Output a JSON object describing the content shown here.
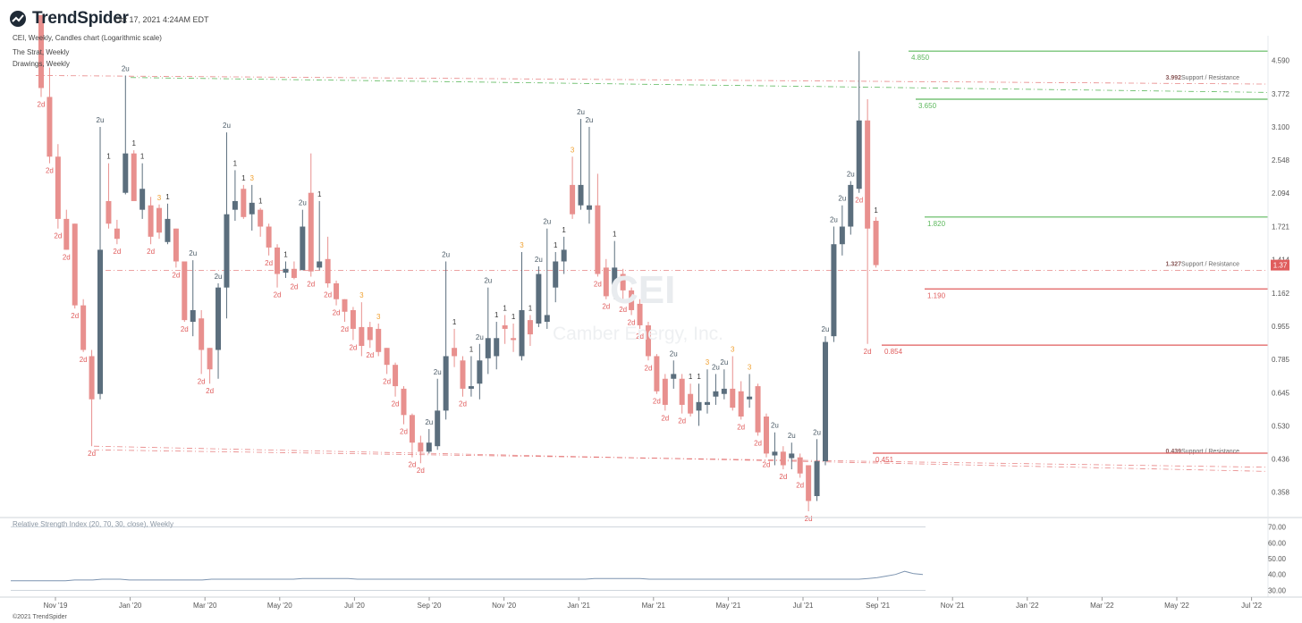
{
  "header": {
    "brand": "TrendSpider",
    "timestamp": "Oct 17, 2021 4:24AM EDT",
    "chart_info": "CEI, Weekly, Candles chart (Logarithmic scale)",
    "study_strat": "The Strat, Weekly",
    "study_drawings": "Drawings, Weekly",
    "rsi_label": "Relative Strength Index (20, 70, 30, close), Weekly",
    "copyright": "©2021 TrendSpider"
  },
  "watermark": {
    "ticker": "CEI",
    "name": "Camber Energy, Inc."
  },
  "colors": {
    "up": "#5b6e7d",
    "down": "#e8908e",
    "green": "#5cb85c",
    "red": "#e05d5d",
    "orange": "#f0a030",
    "grid": "#e3e6ea",
    "rsi": "#7d94b0"
  },
  "icons": {
    "logo": "trendspider-logo-icon"
  },
  "chart_data": {
    "type": "candlestick",
    "scale": "log",
    "ylim": [
      0.31,
      5.2
    ],
    "y_ticks": [
      "4.590",
      "3.772",
      "3.100",
      "2.548",
      "2.094",
      "1.721",
      "1.414",
      "1.162",
      "0.955",
      "0.785",
      "0.645",
      "0.530",
      "0.436",
      "0.358"
    ],
    "last_price": "1.37",
    "x_ticks": [
      "Nov '19",
      "Jan '20",
      "Mar '20",
      "May '20",
      "Jul '20",
      "Sep '20",
      "Nov '20",
      "Jan '21",
      "Mar '21",
      "May '21",
      "Jul '21",
      "Sep '21",
      "Nov '21",
      "Jan '22",
      "Mar '22",
      "May '22",
      "Jul '22"
    ],
    "bars": [
      {
        "d": "dn",
        "o": 6.0,
        "h": 6.0,
        "c": 3.9,
        "l": 3.7,
        "lbl": "2d"
      },
      {
        "d": "dn",
        "o": 3.7,
        "h": 4.4,
        "c": 2.6,
        "l": 2.5,
        "lbl": "2d"
      },
      {
        "d": "dn",
        "o": 2.6,
        "h": 2.8,
        "c": 1.8,
        "l": 1.7,
        "lbl": "2d"
      },
      {
        "d": "dn",
        "o": 1.8,
        "h": 1.9,
        "c": 1.5,
        "l": 1.5,
        "lbl": "2d"
      },
      {
        "d": "dn",
        "o": 1.75,
        "h": 1.75,
        "c": 1.08,
        "l": 1.06,
        "lbl": "2d"
      },
      {
        "d": "dn",
        "o": 1.08,
        "h": 1.12,
        "c": 0.83,
        "l": 0.82,
        "lbl": "2d"
      },
      {
        "d": "dn",
        "o": 0.8,
        "h": 0.83,
        "c": 0.62,
        "l": 0.47,
        "lbl": "2d"
      },
      {
        "d": "up",
        "o": 0.64,
        "h": 3.1,
        "c": 1.5,
        "l": 0.62,
        "lbl": "2u"
      },
      {
        "d": "dn",
        "o": 2.0,
        "h": 2.5,
        "c": 1.75,
        "l": 1.7,
        "lbl": "1"
      },
      {
        "d": "dn",
        "o": 1.7,
        "h": 1.79,
        "c": 1.6,
        "l": 1.55,
        "lbl": "2d"
      },
      {
        "d": "up",
        "o": 2.1,
        "h": 4.2,
        "c": 2.65,
        "l": 2.08,
        "lbl": "2u"
      },
      {
        "d": "dn",
        "o": 2.65,
        "h": 2.7,
        "c": 2.0,
        "l": 2.05,
        "lbl": "1"
      },
      {
        "d": "up",
        "o": 1.9,
        "h": 2.5,
        "c": 2.15,
        "l": 1.8,
        "lbl": "1"
      },
      {
        "d": "dn",
        "o": 1.95,
        "h": 2.05,
        "c": 1.62,
        "l": 1.55,
        "lbl": "2d"
      },
      {
        "d": "dn",
        "o": 1.92,
        "h": 1.96,
        "c": 1.66,
        "l": 1.6,
        "lbl": "3"
      },
      {
        "d": "up",
        "o": 1.57,
        "h": 1.97,
        "c": 1.8,
        "l": 1.55,
        "lbl": "1"
      },
      {
        "d": "dn",
        "o": 1.7,
        "h": 1.7,
        "c": 1.4,
        "l": 1.35,
        "lbl": "2d"
      },
      {
        "d": "dn",
        "o": 1.4,
        "h": 1.4,
        "c": 0.99,
        "l": 0.98,
        "lbl": "2d"
      },
      {
        "d": "up",
        "o": 0.98,
        "h": 1.41,
        "c": 1.05,
        "l": 0.9,
        "lbl": "2u"
      },
      {
        "d": "dn",
        "o": 1.0,
        "h": 1.05,
        "c": 0.83,
        "l": 0.72,
        "lbl": "2d"
      },
      {
        "d": "dn",
        "o": 0.84,
        "h": 0.84,
        "c": 0.74,
        "l": 0.68,
        "lbl": "2d"
      },
      {
        "d": "up",
        "o": 0.83,
        "h": 1.23,
        "c": 1.2,
        "l": 0.7,
        "lbl": "2u"
      },
      {
        "d": "up",
        "o": 1.2,
        "h": 3.0,
        "c": 1.85,
        "l": 1.0,
        "lbl": "2u"
      },
      {
        "d": "up",
        "o": 1.9,
        "h": 2.4,
        "c": 2.0,
        "l": 1.78,
        "lbl": "1"
      },
      {
        "d": "dn",
        "o": 2.15,
        "h": 2.2,
        "c": 1.82,
        "l": 1.8,
        "lbl": "1"
      },
      {
        "d": "up",
        "o": 1.85,
        "h": 2.2,
        "c": 1.98,
        "l": 1.68,
        "lbl": "3"
      },
      {
        "d": "dn",
        "o": 1.9,
        "h": 1.92,
        "c": 1.72,
        "l": 1.62,
        "lbl": "1"
      },
      {
        "d": "dn",
        "o": 1.72,
        "h": 1.75,
        "c": 1.52,
        "l": 1.45,
        "lbl": "2d"
      },
      {
        "d": "dn",
        "o": 1.52,
        "h": 1.55,
        "c": 1.3,
        "l": 1.2,
        "lbl": "2d"
      },
      {
        "d": "up",
        "o": 1.31,
        "h": 1.4,
        "c": 1.34,
        "l": 1.27,
        "lbl": "1"
      },
      {
        "d": "dn",
        "o": 1.34,
        "h": 1.4,
        "c": 1.27,
        "l": 1.26,
        "lbl": "2d"
      },
      {
        "d": "up",
        "o": 1.33,
        "h": 1.9,
        "c": 1.72,
        "l": 1.33,
        "lbl": "2u"
      },
      {
        "d": "dn",
        "o": 2.1,
        "h": 2.65,
        "c": 1.32,
        "l": 1.28,
        "lbl": "2d"
      },
      {
        "d": "up",
        "o": 1.35,
        "h": 2.0,
        "c": 1.4,
        "l": 1.33,
        "lbl": "1"
      },
      {
        "d": "dn",
        "o": 1.42,
        "h": 1.62,
        "c": 1.23,
        "l": 1.2,
        "lbl": "2d"
      },
      {
        "d": "dn",
        "o": 1.23,
        "h": 1.25,
        "c": 1.12,
        "l": 1.08,
        "lbl": "2d"
      },
      {
        "d": "dn",
        "o": 1.12,
        "h": 1.12,
        "c": 1.04,
        "l": 0.98,
        "lbl": "2d"
      },
      {
        "d": "dn",
        "o": 1.05,
        "h": 1.07,
        "c": 0.94,
        "l": 0.88,
        "lbl": "2d"
      },
      {
        "d": "dn",
        "o": 0.95,
        "h": 1.1,
        "c": 0.85,
        "l": 0.8,
        "lbl": "3"
      },
      {
        "d": "dn",
        "o": 0.95,
        "h": 0.98,
        "c": 0.88,
        "l": 0.84,
        "lbl": "2d"
      },
      {
        "d": "dn",
        "o": 0.94,
        "h": 0.97,
        "c": 0.82,
        "l": 0.8,
        "lbl": "3"
      },
      {
        "d": "dn",
        "o": 0.84,
        "h": 0.84,
        "c": 0.76,
        "l": 0.72,
        "lbl": "2d"
      },
      {
        "d": "dn",
        "o": 0.76,
        "h": 0.77,
        "c": 0.67,
        "l": 0.63,
        "lbl": "2d"
      },
      {
        "d": "dn",
        "o": 0.66,
        "h": 0.67,
        "c": 0.565,
        "l": 0.535,
        "lbl": "2d"
      },
      {
        "d": "dn",
        "o": 0.565,
        "h": 0.57,
        "c": 0.48,
        "l": 0.44,
        "lbl": "2d"
      },
      {
        "d": "dn",
        "o": 0.48,
        "h": 0.5,
        "c": 0.455,
        "l": 0.425,
        "lbl": "2d"
      },
      {
        "d": "up",
        "o": 0.455,
        "h": 0.52,
        "c": 0.48,
        "l": 0.45,
        "lbl": "2u"
      },
      {
        "d": "up",
        "o": 0.47,
        "h": 0.7,
        "c": 0.58,
        "l": 0.46,
        "lbl": "2u"
      },
      {
        "d": "up",
        "o": 0.58,
        "h": 1.4,
        "c": 0.8,
        "l": 0.55,
        "lbl": "2u"
      },
      {
        "d": "dn",
        "o": 0.84,
        "h": 0.94,
        "c": 0.8,
        "l": 0.75,
        "lbl": "1"
      },
      {
        "d": "dn",
        "o": 0.78,
        "h": 0.8,
        "c": 0.66,
        "l": 0.63,
        "lbl": "2d"
      },
      {
        "d": "up",
        "o": 0.66,
        "h": 0.8,
        "c": 0.67,
        "l": 0.63,
        "lbl": "1"
      },
      {
        "d": "up",
        "o": 0.68,
        "h": 0.86,
        "c": 0.78,
        "l": 0.62,
        "lbl": "2u"
      },
      {
        "d": "up",
        "o": 0.79,
        "h": 1.2,
        "c": 0.89,
        "l": 0.72,
        "lbl": "2u"
      },
      {
        "d": "up",
        "o": 0.8,
        "h": 0.98,
        "c": 0.89,
        "l": 0.74,
        "lbl": "1"
      },
      {
        "d": "dn",
        "o": 0.96,
        "h": 1.02,
        "c": 0.94,
        "l": 0.86,
        "lbl": "1"
      },
      {
        "d": "dn",
        "o": 0.89,
        "h": 0.97,
        "c": 0.88,
        "l": 0.82,
        "lbl": "1"
      },
      {
        "d": "up",
        "o": 0.8,
        "h": 1.48,
        "c": 1.05,
        "l": 0.78,
        "lbl": "3"
      },
      {
        "d": "dn",
        "o": 0.99,
        "h": 1.02,
        "c": 0.91,
        "l": 0.85,
        "lbl": "1"
      },
      {
        "d": "up",
        "o": 0.97,
        "h": 1.36,
        "c": 1.3,
        "l": 0.95,
        "lbl": "2u"
      },
      {
        "d": "up",
        "o": 0.98,
        "h": 1.7,
        "c": 1.02,
        "l": 0.94,
        "lbl": "2u"
      },
      {
        "d": "up",
        "o": 1.2,
        "h": 1.48,
        "c": 1.4,
        "l": 1.1,
        "lbl": "1"
      },
      {
        "d": "up",
        "o": 1.4,
        "h": 1.62,
        "c": 1.5,
        "l": 1.3,
        "lbl": "1"
      },
      {
        "d": "dn",
        "o": 2.2,
        "h": 2.6,
        "c": 1.85,
        "l": 1.8,
        "lbl": "3"
      },
      {
        "d": "up",
        "o": 1.95,
        "h": 3.25,
        "c": 2.2,
        "l": 1.9,
        "lbl": "2u"
      },
      {
        "d": "up",
        "o": 1.9,
        "h": 3.1,
        "c": 1.95,
        "l": 1.75,
        "lbl": "2u"
      },
      {
        "d": "dn",
        "o": 1.95,
        "h": 2.35,
        "c": 1.3,
        "l": 1.28,
        "lbl": "2d"
      },
      {
        "d": "dn",
        "o": 1.35,
        "h": 1.42,
        "c": 1.14,
        "l": 1.12,
        "lbl": "2d"
      },
      {
        "d": "up",
        "o": 1.22,
        "h": 1.58,
        "c": 1.35,
        "l": 1.12,
        "lbl": "1"
      },
      {
        "d": "dn",
        "o": 1.3,
        "h": 1.34,
        "c": 1.18,
        "l": 1.1,
        "lbl": "2d"
      },
      {
        "d": "dn",
        "o": 1.18,
        "h": 1.2,
        "c": 1.05,
        "l": 1.02,
        "lbl": "2d"
      },
      {
        "d": "dn",
        "o": 1.09,
        "h": 1.12,
        "c": 0.96,
        "l": 0.94,
        "lbl": "2d"
      },
      {
        "d": "dn",
        "o": 0.96,
        "h": 0.98,
        "c": 0.8,
        "l": 0.78,
        "lbl": "2d"
      },
      {
        "d": "dn",
        "o": 0.8,
        "h": 0.81,
        "c": 0.65,
        "l": 0.64,
        "lbl": "2d"
      },
      {
        "d": "dn",
        "o": 0.7,
        "h": 0.72,
        "c": 0.6,
        "l": 0.58,
        "lbl": "2d"
      },
      {
        "d": "up",
        "o": 0.7,
        "h": 0.78,
        "c": 0.72,
        "l": 0.66,
        "lbl": "2u"
      },
      {
        "d": "dn",
        "o": 0.7,
        "h": 0.72,
        "c": 0.6,
        "l": 0.57,
        "lbl": "2d"
      },
      {
        "d": "dn",
        "o": 0.64,
        "h": 0.68,
        "c": 0.57,
        "l": 0.56,
        "lbl": "1"
      },
      {
        "d": "up",
        "o": 0.58,
        "h": 0.68,
        "c": 0.61,
        "l": 0.53,
        "lbl": "1"
      },
      {
        "d": "up",
        "o": 0.6,
        "h": 0.74,
        "c": 0.61,
        "l": 0.57,
        "lbl": "3"
      },
      {
        "d": "up",
        "o": 0.63,
        "h": 0.72,
        "c": 0.65,
        "l": 0.6,
        "lbl": "2u"
      },
      {
        "d": "up",
        "o": 0.64,
        "h": 0.74,
        "c": 0.66,
        "l": 0.62,
        "lbl": "2u"
      },
      {
        "d": "dn",
        "o": 0.66,
        "h": 0.8,
        "c": 0.59,
        "l": 0.58,
        "lbl": "3"
      },
      {
        "d": "dn",
        "o": 0.65,
        "h": 0.69,
        "c": 0.56,
        "l": 0.55,
        "lbl": "2d"
      },
      {
        "d": "up",
        "o": 0.62,
        "h": 0.72,
        "c": 0.63,
        "l": 0.59,
        "lbl": "3"
      },
      {
        "d": "dn",
        "o": 0.67,
        "h": 0.68,
        "c": 0.51,
        "l": 0.5,
        "lbl": "2d"
      },
      {
        "d": "dn",
        "o": 0.56,
        "h": 0.57,
        "c": 0.45,
        "l": 0.44,
        "lbl": "2d"
      },
      {
        "d": "up",
        "o": 0.445,
        "h": 0.51,
        "c": 0.455,
        "l": 0.42,
        "lbl": "2u"
      },
      {
        "d": "dn",
        "o": 0.455,
        "h": 0.47,
        "c": 0.42,
        "l": 0.41,
        "lbl": "2d"
      },
      {
        "d": "up",
        "o": 0.438,
        "h": 0.48,
        "c": 0.45,
        "l": 0.41,
        "lbl": "2u"
      },
      {
        "d": "dn",
        "o": 0.44,
        "h": 0.45,
        "c": 0.4,
        "l": 0.39,
        "lbl": "2d"
      },
      {
        "d": "dn",
        "o": 0.42,
        "h": 0.42,
        "c": 0.34,
        "l": 0.32,
        "lbl": "2d"
      },
      {
        "d": "up",
        "o": 0.35,
        "h": 0.49,
        "c": 0.43,
        "l": 0.34,
        "lbl": "2u"
      },
      {
        "d": "up",
        "o": 0.43,
        "h": 0.9,
        "c": 0.87,
        "l": 0.42,
        "lbl": "2u"
      },
      {
        "d": "up",
        "o": 0.9,
        "h": 1.72,
        "c": 1.55,
        "l": 0.87,
        "lbl": "2u"
      },
      {
        "d": "up",
        "o": 1.55,
        "h": 1.95,
        "c": 1.72,
        "l": 1.45,
        "lbl": "2u"
      },
      {
        "d": "up",
        "o": 1.72,
        "h": 2.25,
        "c": 2.2,
        "l": 1.64,
        "lbl": "2u"
      },
      {
        "d": "up",
        "o": 2.15,
        "h": 4.85,
        "c": 3.22,
        "l": 2.1,
        "lbl": "2d"
      },
      {
        "d": "dn",
        "o": 3.22,
        "h": 3.65,
        "c": 1.7,
        "l": 0.86,
        "lbl": "2d"
      },
      {
        "d": "dn",
        "o": 1.78,
        "h": 1.82,
        "c": 1.37,
        "l": 1.35,
        "lbl": "1"
      }
    ],
    "levels": [
      {
        "value": 4.85,
        "text": "4.850",
        "color": "green",
        "style": "solid",
        "from": 1016
      },
      {
        "value": 3.65,
        "text": "3.650",
        "color": "green",
        "style": "solid",
        "from": 1024
      },
      {
        "value": 1.82,
        "text": "1.820",
        "color": "green",
        "style": "solid",
        "from": 1034
      },
      {
        "value": 1.19,
        "text": "1.190",
        "color": "red",
        "style": "solid",
        "from": 1034
      },
      {
        "value": 0.854,
        "text": "0.854",
        "color": "red",
        "style": "solid",
        "from": 986
      },
      {
        "value": 0.451,
        "text": "0.451",
        "color": "red",
        "style": "solid",
        "from": 976
      }
    ],
    "sr_lines": [
      {
        "value": 3.992,
        "text": "3.992",
        "suffix": "Support / Resistance"
      },
      {
        "value": 1.327,
        "text": "1.327",
        "suffix": "Support / Resistance"
      },
      {
        "value": 0.439,
        "text": "0.439",
        "suffix": "Support / Resistance"
      }
    ],
    "rsi": {
      "ylim": [
        28,
        72
      ],
      "y_ticks": [
        "70.00",
        "60.00",
        "50.00",
        "40.00",
        "30.00"
      ],
      "values": [
        36,
        36,
        36,
        36,
        36,
        36,
        36,
        36.5,
        36.5,
        36.5,
        37,
        37,
        37,
        36.5,
        36.5,
        36.5,
        36.5,
        36.5,
        36.5,
        36.5,
        36.5,
        36.5,
        37,
        37,
        37,
        37,
        37,
        37,
        37,
        37,
        37,
        37,
        37.5,
        37.5,
        37.5,
        37.5,
        37.5,
        37.5,
        37,
        37,
        37,
        37,
        37,
        37,
        37,
        37,
        37,
        37,
        37,
        37,
        37,
        37,
        37,
        37,
        37,
        37,
        37,
        37,
        37,
        37,
        37,
        37,
        37,
        37,
        37.5,
        37.5,
        37.5,
        37.5,
        37.5,
        37.5,
        37,
        37,
        37,
        37,
        37,
        37,
        37,
        37,
        37,
        37,
        37,
        37,
        37,
        37,
        37,
        37,
        37,
        37,
        37,
        37,
        37,
        37,
        37,
        37,
        37.5,
        38,
        39,
        40,
        42,
        40.5,
        40
      ]
    }
  }
}
